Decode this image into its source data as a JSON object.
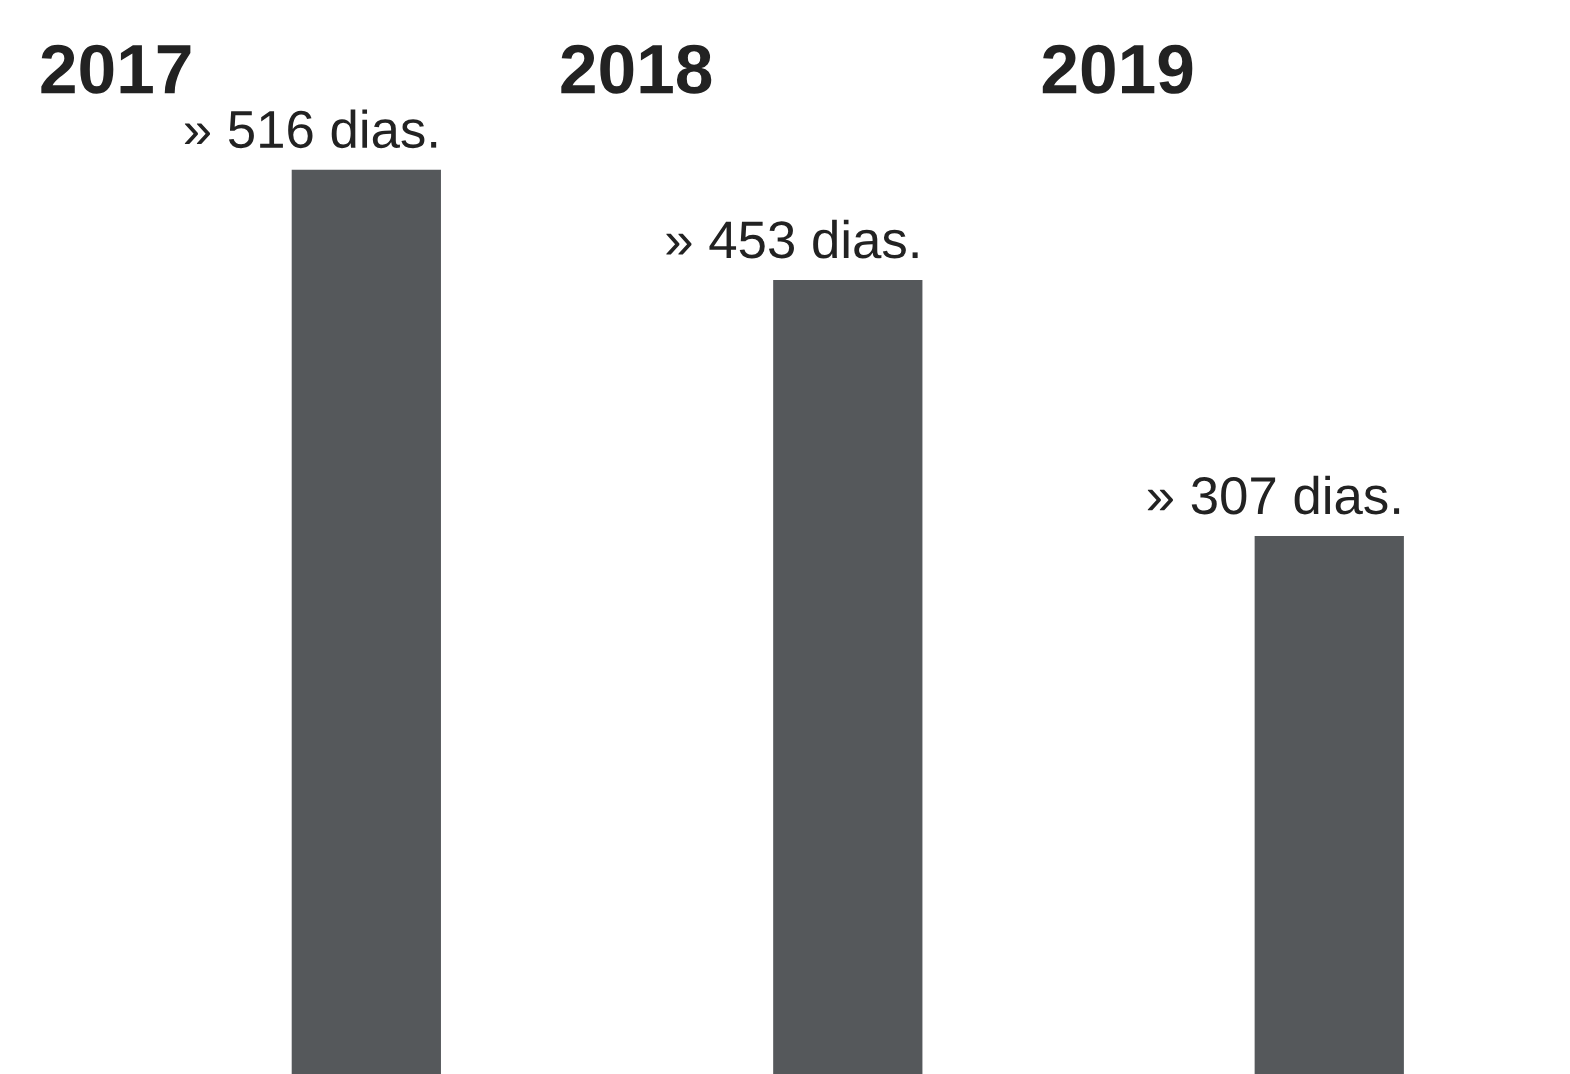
{
  "chart_data": {
    "type": "bar",
    "categories": [
      "2017",
      "2018",
      "2019"
    ],
    "values": [
      516,
      453,
      307
    ],
    "value_labels": [
      "» 516 dias.",
      "» 453 dias.",
      "» 307 dias."
    ],
    "color": "#55585b"
  }
}
